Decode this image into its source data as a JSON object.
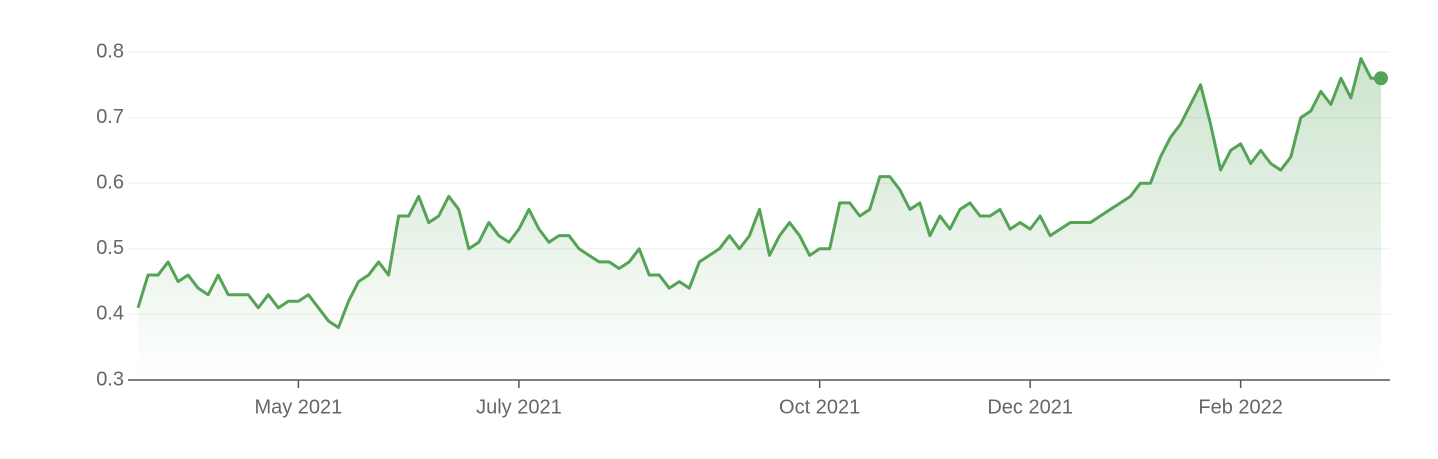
{
  "chart_data": {
    "type": "line",
    "categories": [
      null,
      null,
      null,
      null,
      null,
      null,
      null,
      null,
      null,
      null,
      null,
      null,
      null,
      null,
      null,
      null,
      "May 2021",
      null,
      null,
      null,
      null,
      null,
      null,
      null,
      null,
      null,
      null,
      null,
      null,
      null,
      null,
      null,
      null,
      null,
      null,
      null,
      null,
      null,
      "July 2021",
      null,
      null,
      null,
      null,
      null,
      null,
      null,
      null,
      null,
      null,
      null,
      null,
      null,
      null,
      null,
      null,
      null,
      null,
      null,
      null,
      null,
      null,
      null,
      null,
      null,
      null,
      null,
      null,
      null,
      "Oct 2021",
      null,
      null,
      null,
      null,
      null,
      null,
      null,
      null,
      null,
      null,
      null,
      null,
      null,
      null,
      null,
      null,
      null,
      null,
      null,
      null,
      "Dec 2021",
      null,
      null,
      null,
      null,
      null,
      null,
      null,
      null,
      null,
      null,
      null,
      null,
      null,
      null,
      null,
      null,
      null,
      null,
      null,
      null,
      "Feb 2022",
      null,
      null,
      null,
      null,
      null,
      null,
      null,
      null,
      null,
      null,
      null,
      null,
      null,
      null
    ],
    "series": [
      {
        "color": "#55a357",
        "values": [
          0.41,
          0.46,
          0.46,
          0.48,
          0.45,
          0.46,
          0.44,
          0.43,
          0.46,
          0.43,
          0.43,
          0.43,
          0.41,
          0.43,
          0.41,
          0.42,
          0.42,
          0.43,
          0.41,
          0.39,
          0.38,
          0.42,
          0.45,
          0.46,
          0.48,
          0.46,
          0.55,
          0.55,
          0.58,
          0.54,
          0.55,
          0.58,
          0.56,
          0.5,
          0.51,
          0.54,
          0.52,
          0.51,
          0.53,
          0.56,
          0.53,
          0.51,
          0.52,
          0.52,
          0.5,
          0.49,
          0.48,
          0.48,
          0.47,
          0.48,
          0.5,
          0.46,
          0.46,
          0.44,
          0.45,
          0.44,
          0.48,
          0.49,
          0.5,
          0.52,
          0.5,
          0.52,
          0.56,
          0.49,
          0.52,
          0.54,
          0.52,
          0.49,
          0.5,
          0.5,
          0.57,
          0.57,
          0.55,
          0.56,
          0.61,
          0.61,
          0.59,
          0.56,
          0.57,
          0.52,
          0.55,
          0.53,
          0.56,
          0.57,
          0.55,
          0.55,
          0.56,
          0.53,
          0.54,
          0.53,
          0.55,
          0.52,
          0.53,
          0.54,
          0.54,
          0.54,
          0.55,
          0.56,
          0.57,
          0.58,
          0.6,
          0.6,
          0.64,
          0.67,
          0.69,
          0.72,
          0.75,
          0.69,
          0.62,
          0.65,
          0.66,
          0.63,
          0.65,
          0.63,
          0.62,
          0.64,
          0.7,
          0.71,
          0.74,
          0.72,
          0.76,
          0.73,
          0.79,
          0.76,
          0.76
        ]
      }
    ],
    "ylim": [
      0.3,
      0.8
    ],
    "yticks": [
      0.3,
      0.4,
      0.5,
      0.6,
      0.7,
      0.8
    ],
    "grid": true
  }
}
